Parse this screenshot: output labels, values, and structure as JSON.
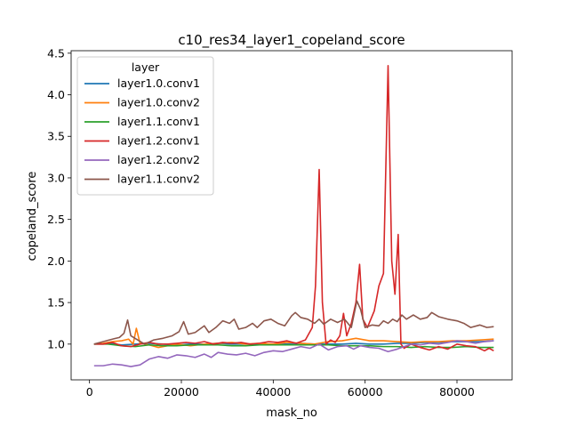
{
  "chart_data": {
    "type": "line",
    "title": "c10_res34_layer1_copeland_score",
    "xlabel": "mask_no",
    "ylabel": "copeland_score",
    "xlim": [
      -4000,
      92000
    ],
    "ylim": [
      0.57,
      4.53
    ],
    "xticks": [
      0,
      20000,
      40000,
      60000,
      80000
    ],
    "xtick_labels": [
      "0",
      "20000",
      "40000",
      "60000",
      "80000"
    ],
    "yticks": [
      1.0,
      1.5,
      2.0,
      2.5,
      3.0,
      3.5,
      4.0,
      4.5
    ],
    "ytick_labels": [
      "1.0",
      "1.5",
      "2.0",
      "2.5",
      "3.0",
      "3.5",
      "4.0",
      "4.5"
    ],
    "grid": false,
    "legend": {
      "title": "layer",
      "placement": "top-left"
    },
    "series": [
      {
        "name": "layer1.0.conv1",
        "color": "#1f77b4",
        "points": [
          [
            1000,
            1.0
          ],
          [
            4000,
            1.01
          ],
          [
            7000,
            0.99
          ],
          [
            10000,
            1.0
          ],
          [
            13000,
            1.01
          ],
          [
            16000,
            1.0
          ],
          [
            19000,
            0.99
          ],
          [
            22000,
            1.0
          ],
          [
            25000,
            1.0
          ],
          [
            28000,
            1.01
          ],
          [
            31000,
            1.0
          ],
          [
            34000,
            1.0
          ],
          [
            37000,
            0.99
          ],
          [
            40000,
            1.0
          ],
          [
            43000,
            1.0
          ],
          [
            46000,
            1.01
          ],
          [
            49000,
            1.0
          ],
          [
            52000,
            1.0
          ],
          [
            55000,
            1.0
          ],
          [
            58000,
            1.01
          ],
          [
            61000,
            1.0
          ],
          [
            64000,
            1.0
          ],
          [
            67000,
            1.01
          ],
          [
            70000,
            1.01
          ],
          [
            73000,
            1.02
          ],
          [
            76000,
            1.02
          ],
          [
            79000,
            1.03
          ],
          [
            82000,
            1.03
          ],
          [
            85000,
            1.03
          ],
          [
            88000,
            1.04
          ]
        ]
      },
      {
        "name": "layer1.0.conv2",
        "color": "#ff7f0e",
        "points": [
          [
            1000,
            1.0
          ],
          [
            3000,
            1.01
          ],
          [
            5000,
            1.03
          ],
          [
            7000,
            1.04
          ],
          [
            8500,
            1.06
          ],
          [
            9500,
            1.0
          ],
          [
            10200,
            1.19
          ],
          [
            11000,
            1.01
          ],
          [
            13000,
            0.99
          ],
          [
            15000,
            0.96
          ],
          [
            17000,
            0.98
          ],
          [
            19000,
            1.0
          ],
          [
            22000,
            0.98
          ],
          [
            25000,
            1.0
          ],
          [
            28000,
            1.01
          ],
          [
            31000,
            1.02
          ],
          [
            34000,
            1.0
          ],
          [
            37000,
            1.01
          ],
          [
            40000,
            1.0
          ],
          [
            43000,
            1.02
          ],
          [
            46000,
            1.01
          ],
          [
            49000,
            1.0
          ],
          [
            52000,
            1.03
          ],
          [
            55000,
            1.04
          ],
          [
            58000,
            1.07
          ],
          [
            61000,
            1.04
          ],
          [
            64000,
            1.04
          ],
          [
            67000,
            1.03
          ],
          [
            70000,
            1.02
          ],
          [
            73000,
            1.03
          ],
          [
            76000,
            1.03
          ],
          [
            79000,
            1.04
          ],
          [
            82000,
            1.04
          ],
          [
            85000,
            1.05
          ],
          [
            88000,
            1.06
          ]
        ]
      },
      {
        "name": "layer1.1.conv1",
        "color": "#2ca02c",
        "points": [
          [
            1000,
            1.0
          ],
          [
            4000,
            1.0
          ],
          [
            7000,
            0.98
          ],
          [
            10000,
            0.97
          ],
          [
            13000,
            0.99
          ],
          [
            16000,
            0.98
          ],
          [
            19000,
            0.98
          ],
          [
            22000,
            0.99
          ],
          [
            25000,
            0.99
          ],
          [
            28000,
            0.99
          ],
          [
            31000,
            0.98
          ],
          [
            34000,
            0.98
          ],
          [
            37000,
            0.99
          ],
          [
            40000,
            0.99
          ],
          [
            43000,
            0.99
          ],
          [
            46000,
            0.99
          ],
          [
            49000,
            0.99
          ],
          [
            52000,
            0.99
          ],
          [
            55000,
            0.98
          ],
          [
            58000,
            0.98
          ],
          [
            61000,
            0.98
          ],
          [
            64000,
            0.97
          ],
          [
            67000,
            0.97
          ],
          [
            70000,
            0.96
          ],
          [
            73000,
            0.97
          ],
          [
            76000,
            0.96
          ],
          [
            79000,
            0.96
          ],
          [
            82000,
            0.97
          ],
          [
            85000,
            0.96
          ],
          [
            88000,
            0.96
          ]
        ]
      },
      {
        "name": "layer1.2.conv1",
        "color": "#d62728",
        "points": [
          [
            1000,
            1.0
          ],
          [
            3000,
            1.0
          ],
          [
            5000,
            1.02
          ],
          [
            7000,
            0.98
          ],
          [
            9000,
            0.97
          ],
          [
            11000,
            1.0
          ],
          [
            13000,
            1.02
          ],
          [
            15000,
            1.0
          ],
          [
            17000,
            1.0
          ],
          [
            19000,
            1.01
          ],
          [
            21000,
            1.02
          ],
          [
            23000,
            1.01
          ],
          [
            25000,
            1.03
          ],
          [
            27000,
            1.0
          ],
          [
            29000,
            1.02
          ],
          [
            31000,
            1.01
          ],
          [
            33000,
            1.02
          ],
          [
            35000,
            1.0
          ],
          [
            37000,
            1.01
          ],
          [
            39000,
            1.03
          ],
          [
            41000,
            1.02
          ],
          [
            43000,
            1.04
          ],
          [
            45000,
            1.01
          ],
          [
            47000,
            1.05
          ],
          [
            48500,
            1.2
          ],
          [
            49200,
            1.7
          ],
          [
            50000,
            3.1
          ],
          [
            50700,
            1.5
          ],
          [
            51500,
            1.0
          ],
          [
            52500,
            1.05
          ],
          [
            53500,
            1.02
          ],
          [
            54500,
            1.1
          ],
          [
            55300,
            1.37
          ],
          [
            56000,
            1.1
          ],
          [
            57000,
            1.25
          ],
          [
            58000,
            1.5
          ],
          [
            58800,
            1.96
          ],
          [
            59500,
            1.3
          ],
          [
            60500,
            1.2
          ],
          [
            62000,
            1.4
          ],
          [
            63000,
            1.7
          ],
          [
            64000,
            1.85
          ],
          [
            65000,
            4.35
          ],
          [
            65800,
            2.0
          ],
          [
            66500,
            1.6
          ],
          [
            67200,
            2.32
          ],
          [
            67800,
            1.0
          ],
          [
            68500,
            0.95
          ],
          [
            70000,
            1.0
          ],
          [
            72000,
            0.96
          ],
          [
            74000,
            0.93
          ],
          [
            76000,
            0.97
          ],
          [
            78000,
            0.94
          ],
          [
            80000,
            1.0
          ],
          [
            82000,
            0.98
          ],
          [
            84000,
            0.97
          ],
          [
            86000,
            0.92
          ],
          [
            87000,
            0.95
          ],
          [
            88000,
            0.92
          ]
        ]
      },
      {
        "name": "layer1.2.conv2",
        "color": "#9467bd",
        "points": [
          [
            1000,
            0.74
          ],
          [
            3000,
            0.74
          ],
          [
            5000,
            0.76
          ],
          [
            7000,
            0.75
          ],
          [
            9000,
            0.73
          ],
          [
            11000,
            0.75
          ],
          [
            13000,
            0.82
          ],
          [
            15000,
            0.85
          ],
          [
            17000,
            0.83
          ],
          [
            19000,
            0.87
          ],
          [
            21000,
            0.86
          ],
          [
            23000,
            0.84
          ],
          [
            25000,
            0.88
          ],
          [
            26500,
            0.84
          ],
          [
            28000,
            0.9
          ],
          [
            30000,
            0.88
          ],
          [
            32000,
            0.87
          ],
          [
            34000,
            0.89
          ],
          [
            36000,
            0.86
          ],
          [
            38000,
            0.9
          ],
          [
            40000,
            0.92
          ],
          [
            42000,
            0.91
          ],
          [
            44000,
            0.94
          ],
          [
            46000,
            0.97
          ],
          [
            48000,
            0.95
          ],
          [
            50000,
            1.0
          ],
          [
            52000,
            0.93
          ],
          [
            54000,
            0.97
          ],
          [
            56000,
            0.98
          ],
          [
            57500,
            0.94
          ],
          [
            59000,
            0.98
          ],
          [
            61000,
            0.96
          ],
          [
            63000,
            0.95
          ],
          [
            65000,
            0.91
          ],
          [
            67000,
            0.94
          ],
          [
            68500,
            0.97
          ],
          [
            70000,
            1.0
          ],
          [
            72000,
            0.99
          ],
          [
            74000,
            1.01
          ],
          [
            76000,
            1.0
          ],
          [
            78000,
            1.02
          ],
          [
            80000,
            1.04
          ],
          [
            82000,
            1.03
          ],
          [
            84000,
            1.01
          ],
          [
            86000,
            1.03
          ],
          [
            88000,
            1.04
          ]
        ]
      },
      {
        "name": "layer1.1.conv2",
        "color": "#8c564b",
        "points": [
          [
            1000,
            1.0
          ],
          [
            3000,
            1.03
          ],
          [
            5000,
            1.06
          ],
          [
            6500,
            1.08
          ],
          [
            7500,
            1.13
          ],
          [
            8300,
            1.29
          ],
          [
            9000,
            1.1
          ],
          [
            10500,
            1.05
          ],
          [
            12000,
            1.0
          ],
          [
            14000,
            1.05
          ],
          [
            16000,
            1.07
          ],
          [
            18000,
            1.1
          ],
          [
            19500,
            1.15
          ],
          [
            20500,
            1.27
          ],
          [
            21500,
            1.12
          ],
          [
            23000,
            1.14
          ],
          [
            25000,
            1.22
          ],
          [
            26000,
            1.14
          ],
          [
            27500,
            1.2
          ],
          [
            29000,
            1.28
          ],
          [
            30500,
            1.25
          ],
          [
            31500,
            1.3
          ],
          [
            32500,
            1.18
          ],
          [
            34000,
            1.2
          ],
          [
            35500,
            1.25
          ],
          [
            36500,
            1.2
          ],
          [
            38000,
            1.28
          ],
          [
            39500,
            1.3
          ],
          [
            41000,
            1.25
          ],
          [
            42500,
            1.22
          ],
          [
            44000,
            1.34
          ],
          [
            44800,
            1.38
          ],
          [
            46000,
            1.32
          ],
          [
            47500,
            1.3
          ],
          [
            49000,
            1.25
          ],
          [
            50000,
            1.3
          ],
          [
            51000,
            1.24
          ],
          [
            52500,
            1.3
          ],
          [
            54000,
            1.26
          ],
          [
            55500,
            1.3
          ],
          [
            57000,
            1.2
          ],
          [
            58200,
            1.52
          ],
          [
            59000,
            1.42
          ],
          [
            60000,
            1.2
          ],
          [
            61500,
            1.23
          ],
          [
            63000,
            1.22
          ],
          [
            64000,
            1.28
          ],
          [
            65000,
            1.25
          ],
          [
            66000,
            1.3
          ],
          [
            67000,
            1.27
          ],
          [
            68000,
            1.35
          ],
          [
            69000,
            1.3
          ],
          [
            70500,
            1.35
          ],
          [
            72000,
            1.3
          ],
          [
            73500,
            1.32
          ],
          [
            74500,
            1.38
          ],
          [
            76000,
            1.33
          ],
          [
            78000,
            1.3
          ],
          [
            80000,
            1.28
          ],
          [
            81500,
            1.25
          ],
          [
            83000,
            1.2
          ],
          [
            85000,
            1.23
          ],
          [
            86500,
            1.2
          ],
          [
            88000,
            1.21
          ]
        ]
      }
    ]
  }
}
